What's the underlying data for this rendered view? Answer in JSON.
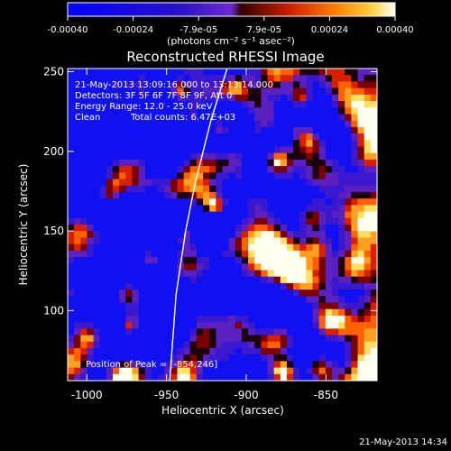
{
  "chart_data": {
    "type": "heatmap",
    "title": "Reconstructed RHESSI Image",
    "xlabel": "Heliocentric X (arcsec)",
    "ylabel": "Heliocentric Y (arcsec)",
    "xlim": [
      -1012,
      -818
    ],
    "ylim": [
      56,
      252
    ],
    "x_ticks": [
      -1000,
      -950,
      -900,
      -850
    ],
    "y_ticks": [
      100,
      150,
      200,
      250
    ],
    "colorbar": {
      "range": [
        -0.0004,
        0.0004
      ],
      "ticks": [
        "-0.00040",
        "-0.00024",
        "-7.9e-05",
        "7.9e-05",
        "0.00024",
        "0.00040"
      ],
      "unit_label": "(photons cm⁻² s⁻¹ asec⁻²)"
    },
    "annotations": {
      "time": "21-May-2013 13:09:16.000 to 13:13:14.000",
      "detectors": "Detectors: 3F 5F 6F 7F 8F 9F, Att 0",
      "energy": "Energy Range: 12.0 - 25.0 keV",
      "method": "Clean",
      "counts": "Total counts: 6.47E+03",
      "peak": "Position of Peak = [-854,246]"
    },
    "limb_curve": [
      [
        -912,
        252
      ],
      [
        -922,
        220
      ],
      [
        -932,
        180
      ],
      [
        -938,
        150
      ],
      [
        -944,
        110
      ],
      [
        -948,
        56
      ]
    ],
    "timestamp": "21-May-2013 14:34",
    "colors": {
      "negative": "#0000ff",
      "zero": "#6a2ad0",
      "positive": "#ffffff",
      "background": "#000000"
    }
  }
}
